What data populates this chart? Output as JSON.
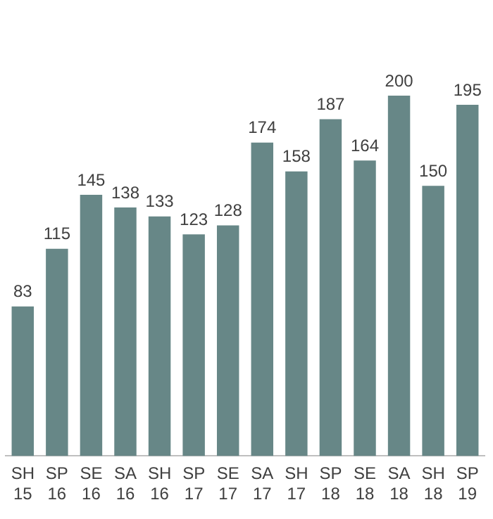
{
  "chart_data": {
    "type": "bar",
    "categories": [
      "SH 15",
      "SP 16",
      "SE 16",
      "SA 16",
      "SH 16",
      "SP 17",
      "SE 17",
      "SA 17",
      "SH 17",
      "SP 18",
      "SE 18",
      "SA 18",
      "SH 18",
      "SP 19"
    ],
    "values": [
      83,
      115,
      145,
      138,
      133,
      123,
      128,
      174,
      158,
      187,
      164,
      200,
      150,
      195
    ],
    "color": "#678787",
    "data_labels": true,
    "grid": false,
    "legend": false
  }
}
